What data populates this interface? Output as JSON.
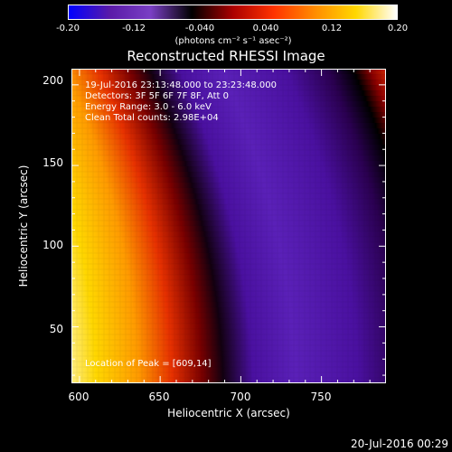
{
  "colorbar": {
    "ticks": [
      "-0.20",
      "-0.12",
      "-0.040",
      "0.040",
      "0.12",
      "0.20"
    ],
    "tick_values": [
      -0.2,
      -0.12,
      -0.04,
      0.04,
      0.12,
      0.2
    ],
    "unit": "(photons cm⁻² s⁻¹ asec⁻²)",
    "colors": [
      "#0000ff",
      "#5a1aa8",
      "#7a3fc4",
      "#000000",
      "#aa0000",
      "#ff3300",
      "#ff8c00",
      "#ffd700",
      "#ffffff"
    ]
  },
  "chart_data": {
    "type": "heatmap",
    "title": "Reconstructed RHESSI Image",
    "xlabel": "Heliocentric X (arcsec)",
    "ylabel": "Heliocentric Y (arcsec)",
    "xlim": [
      595,
      790
    ],
    "ylim": [
      15,
      210
    ],
    "x_ticks": [
      "600",
      "650",
      "700",
      "750"
    ],
    "x_tick_values": [
      600,
      650,
      700,
      750
    ],
    "y_ticks": [
      "50",
      "100",
      "150",
      "200"
    ],
    "y_tick_values": [
      50,
      100,
      150,
      200
    ],
    "annotations": [
      "19-Jul-2016 23:13:48.000 to 23:23:48.000",
      "Detectors: 3F 5F 6F 7F 8F, Att 0",
      "Energy Range: 3.0 - 6.0 keV",
      "Clean     Total counts: 2.98E+04"
    ],
    "peak_label": "Location of Peak = [609,14]",
    "peak": [
      609,
      14
    ]
  },
  "timestamp": "20-Jul-2016 00:29"
}
